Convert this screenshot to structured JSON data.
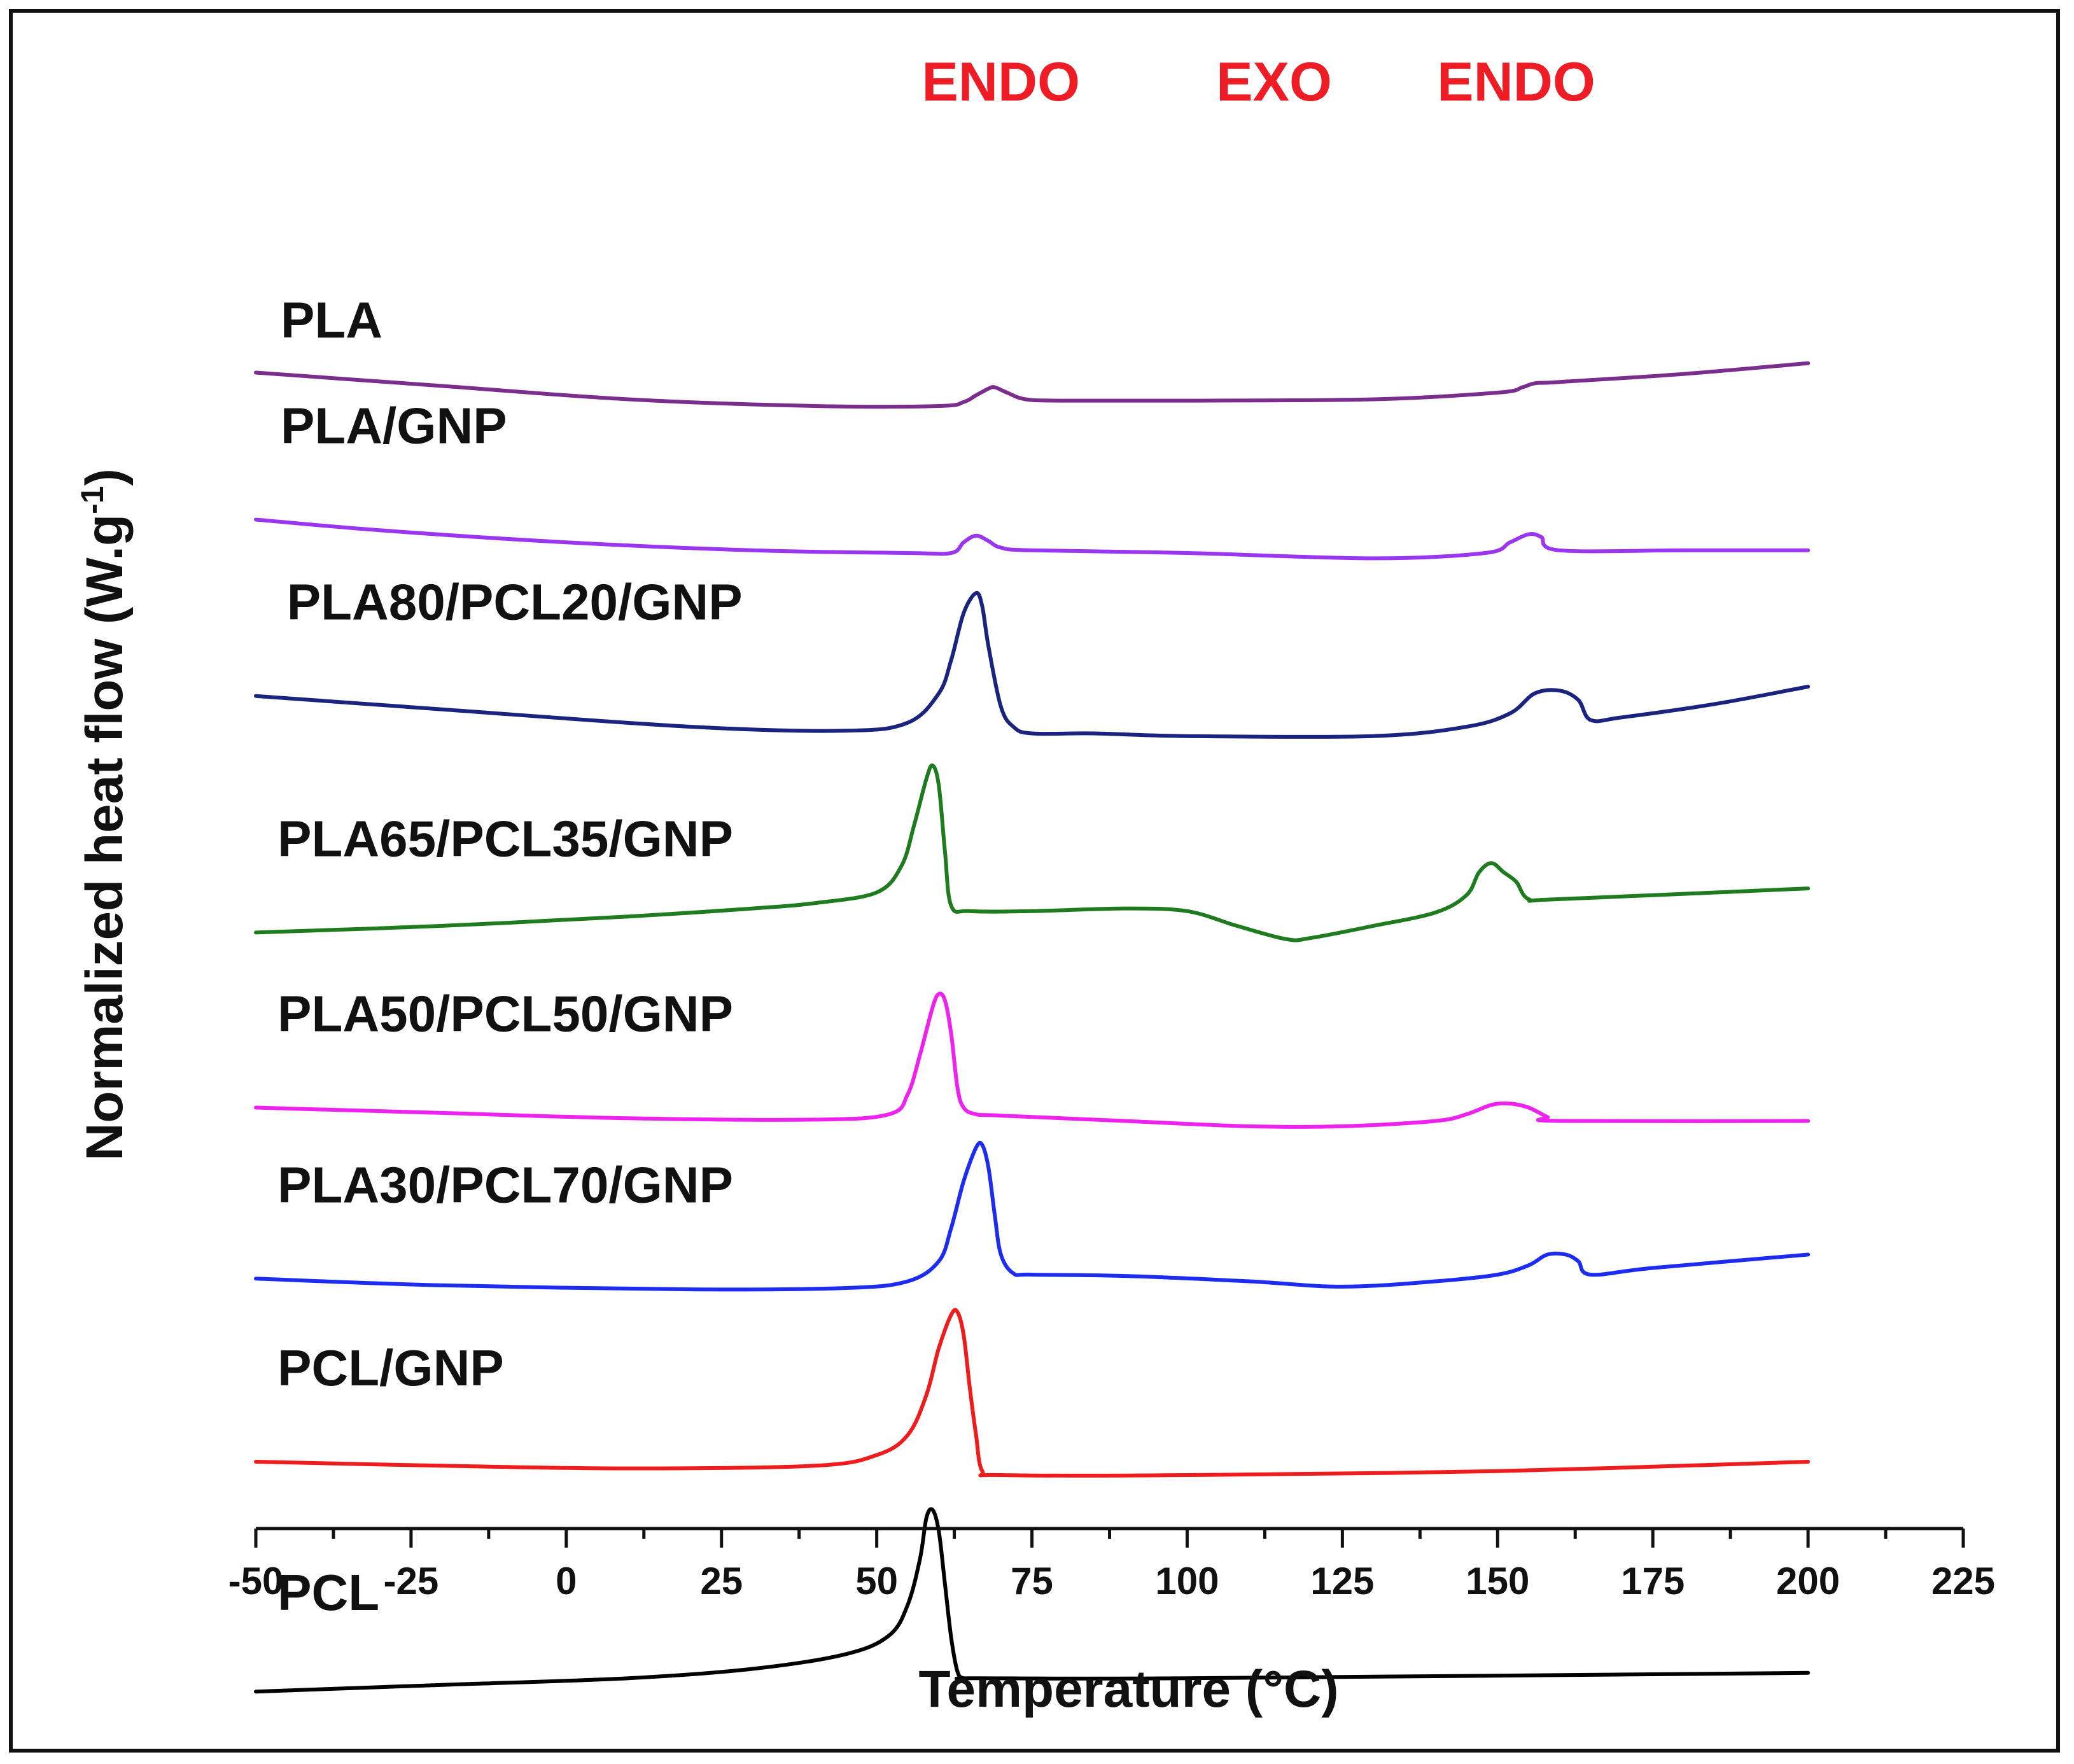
{
  "chart_data": {
    "type": "line",
    "title": "",
    "xlabel": "Temperature (°C)",
    "ylabel_main": "Normalized heat flow (W.g",
    "ylabel_sup": "-1",
    "ylabel_close": ")",
    "xlim": [
      -50,
      225
    ],
    "xticks": [
      -50,
      -25,
      0,
      25,
      50,
      75,
      100,
      125,
      150,
      175,
      200,
      225
    ],
    "y_axis_shown": false,
    "region_labels": [
      {
        "text": "ENDO",
        "x": 70
      },
      {
        "text": "EXO",
        "x": 114
      },
      {
        "text": "ENDO",
        "x": 153
      }
    ],
    "region_color": "#ee1c24",
    "series": [
      {
        "name": "PLA",
        "color": "#7b2d8e",
        "label_x": -46,
        "offset": 7.9,
        "x": [
          -50,
          -20,
          10,
          40,
          60,
          64,
          66,
          68,
          69,
          71,
          74,
          80,
          100,
          130,
          150,
          154,
          156,
          160,
          180,
          200
        ],
        "y": [
          0.25,
          0.15,
          0.05,
          0.0,
          0.0,
          0.03,
          0.08,
          0.13,
          0.14,
          0.1,
          0.05,
          0.04,
          0.04,
          0.05,
          0.1,
          0.14,
          0.17,
          0.18,
          0.24,
          0.32
        ]
      },
      {
        "name": "PLA/GNP",
        "color": "#9b35f0",
        "label_x": -46,
        "offset": 6.8,
        "x": [
          -50,
          -30,
          0,
          30,
          55,
          62,
          64,
          66,
          68,
          70,
          75,
          100,
          130,
          148,
          152,
          155,
          157,
          160,
          180,
          200
        ],
        "y": [
          0.25,
          0.17,
          0.08,
          0.02,
          0.0,
          0.0,
          0.08,
          0.13,
          0.09,
          0.04,
          0.02,
          0.0,
          -0.04,
          0.0,
          0.08,
          0.14,
          0.12,
          0.02,
          0.02,
          0.02
        ]
      },
      {
        "name": "PLA80/PCL20/GNP",
        "color": "#1a237e",
        "label_x": -45,
        "offset": 5.45,
        "x": [
          -50,
          -20,
          20,
          45,
          55,
          60,
          62,
          64,
          66,
          67,
          68,
          70,
          72,
          75,
          85,
          100,
          130,
          145,
          152,
          156,
          160,
          163,
          165,
          170,
          185,
          200
        ],
        "y": [
          0.28,
          0.18,
          0.05,
          0.02,
          0.08,
          0.3,
          0.55,
          0.9,
          1.05,
          0.95,
          0.65,
          0.2,
          0.05,
          0.0,
          0.0,
          -0.02,
          -0.02,
          0.05,
          0.15,
          0.3,
          0.32,
          0.25,
          0.1,
          0.12,
          0.22,
          0.35
        ]
      },
      {
        "name": "PLA65/PCL35/GNP",
        "color": "#1e7b1e",
        "label_x": -46.5,
        "offset": 3.96,
        "x": [
          -50,
          -20,
          10,
          30,
          40,
          50,
          54,
          56,
          58,
          59,
          60,
          61,
          62,
          65,
          75,
          90,
          100,
          108,
          116,
          120,
          130,
          140,
          145,
          147,
          149,
          151,
          153,
          155,
          160,
          200
        ],
        "y": [
          0.0,
          0.05,
          0.12,
          0.18,
          0.22,
          0.3,
          0.5,
          0.8,
          1.15,
          1.25,
          1.1,
          0.6,
          0.2,
          0.16,
          0.16,
          0.18,
          0.16,
          0.05,
          -0.05,
          -0.04,
          0.05,
          0.15,
          0.28,
          0.45,
          0.52,
          0.45,
          0.38,
          0.25,
          0.25,
          0.33
        ]
      },
      {
        "name": "PLA50/PCL50/GNP",
        "color": "#ee22ee",
        "label_x": -46.5,
        "offset": 2.55,
        "x": [
          -50,
          -20,
          10,
          40,
          52,
          55,
          57,
          59,
          60,
          61,
          62,
          63,
          64,
          66,
          70,
          90,
          110,
          125,
          140,
          145,
          149,
          152,
          155,
          158,
          160,
          200
        ],
        "y": [
          0.1,
          0.06,
          0.02,
          0.01,
          0.05,
          0.2,
          0.5,
          0.85,
          0.95,
          0.9,
          0.65,
          0.25,
          0.1,
          0.05,
          0.04,
          0.0,
          -0.04,
          -0.04,
          0.0,
          0.05,
          0.12,
          0.13,
          0.1,
          0.03,
          0.0,
          0.0
        ]
      },
      {
        "name": "PLA30/PCL70/GNP",
        "color": "#1c2cf0",
        "label_x": -46.5,
        "offset": 1.35,
        "x": [
          -50,
          -20,
          20,
          45,
          55,
          60,
          62,
          64,
          66,
          67,
          68,
          69,
          70,
          72,
          75,
          90,
          110,
          125,
          140,
          150,
          155,
          158,
          161,
          163,
          165,
          175,
          200
        ],
        "y": [
          0.02,
          -0.03,
          -0.06,
          -0.05,
          0.0,
          0.15,
          0.4,
          0.75,
          1.0,
          1.02,
          0.85,
          0.5,
          0.2,
          0.06,
          0.05,
          0.04,
          0.0,
          -0.04,
          0.0,
          0.05,
          0.12,
          0.2,
          0.2,
          0.15,
          0.05,
          0.1,
          0.2
        ]
      },
      {
        "name": "PCL/GNP",
        "color": "#ee1c1c",
        "label_x": -46.5,
        "offset": 0.0,
        "x": [
          -50,
          -20,
          10,
          40,
          50,
          55,
          58,
          60,
          62,
          63,
          64,
          65,
          66,
          67,
          70,
          100,
          150,
          200
        ],
        "y": [
          0.0,
          -0.03,
          -0.05,
          -0.03,
          0.05,
          0.2,
          0.5,
          0.85,
          1.1,
          1.12,
          0.95,
          0.55,
          0.2,
          -0.07,
          -0.1,
          -0.1,
          -0.07,
          0.0
        ]
      },
      {
        "name": "PCL",
        "color": "#000000",
        "label_x": -46.5,
        "offset": -1.72,
        "x": [
          -50,
          -20,
          10,
          30,
          45,
          52,
          55,
          57,
          58,
          59,
          60,
          61,
          62,
          63,
          64,
          66,
          100,
          200
        ],
        "y": [
          0.0,
          0.05,
          0.1,
          0.17,
          0.28,
          0.42,
          0.65,
          1.0,
          1.3,
          1.36,
          1.2,
          0.8,
          0.4,
          0.15,
          0.1,
          0.1,
          0.1,
          0.14
        ]
      }
    ]
  }
}
